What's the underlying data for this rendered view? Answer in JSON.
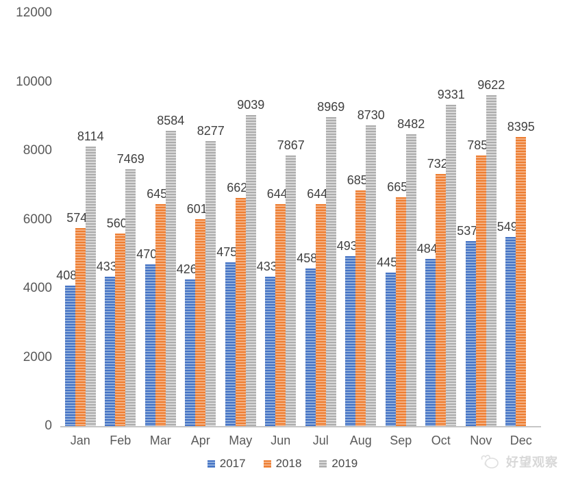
{
  "chart_data": {
    "type": "bar",
    "title": "",
    "xlabel": "",
    "ylabel": "",
    "categories": [
      "Jan",
      "Feb",
      "Mar",
      "Apr",
      "May",
      "Jun",
      "Jul",
      "Aug",
      "Sep",
      "Oct",
      "Nov",
      "Dec"
    ],
    "series": [
      {
        "name": "2017",
        "color": "#4472C4",
        "color_light": "#8FAEDC",
        "values": [
          4088,
          4338,
          4702,
          4265,
          4759,
          4339,
          4580,
          4931,
          4452,
          4849,
          5373,
          5490
        ]
      },
      {
        "name": "2018",
        "color": "#ED7D31",
        "color_light": "#F5B183",
        "values": [
          5749,
          5602,
          6451,
          6019,
          6627,
          6445,
          6445,
          6855,
          6655,
          7328,
          7852,
          8395
        ]
      },
      {
        "name": "2019",
        "color": "#ACACAC",
        "color_light": "#D9D9D9",
        "values": [
          8114,
          7469,
          8584,
          8277,
          9039,
          7867,
          8969,
          8730,
          8482,
          9331,
          9622,
          null
        ]
      }
    ],
    "ylim": [
      0,
      12000
    ],
    "yticks": [
      0,
      2000,
      4000,
      6000,
      8000,
      10000,
      12000
    ],
    "grid": false,
    "data_labels": true,
    "legend_position": "bottom"
  },
  "watermark": {
    "text": "好望观察"
  },
  "colors": {
    "axis_line": "#C6C6C6",
    "axis_text": "#595959",
    "label_text": "#404040",
    "watermark_text": "#D8D8D8"
  }
}
